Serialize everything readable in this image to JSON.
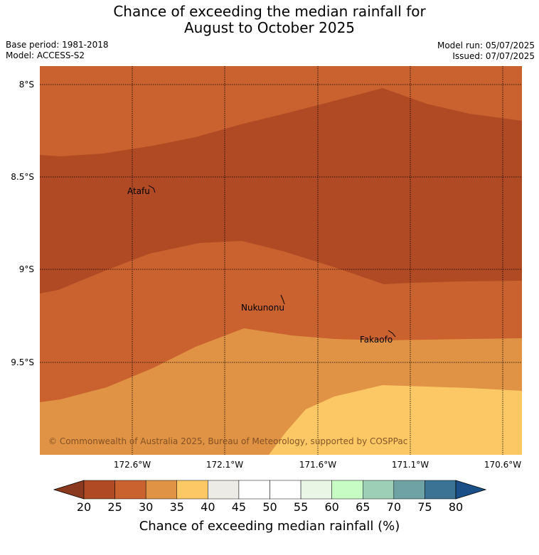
{
  "title_line1": "Chance of exceeding the median rainfall for",
  "title_line2": "August to October 2025",
  "meta": {
    "base_period": "Base period: 1981-2018",
    "model": "Model: ACCESS-S2",
    "model_run": "Model run: 05/07/2025",
    "issued": "Issued: 07/07/2025"
  },
  "axes": {
    "y_ticks": [
      "8°S",
      "8.5°S",
      "9°S",
      "9.5°S"
    ],
    "x_ticks": [
      "172.6°W",
      "172.1°W",
      "171.6°W",
      "171.1°W",
      "170.6°W"
    ]
  },
  "places": [
    "Atafu",
    "Nukunonu",
    "Fakaofo"
  ],
  "copyright": "© Commonwealth of Australia 2025, Bureau of Meteorology, supported by COSPPac",
  "colorbar": {
    "label": "Chance of exceeding median rainfall (%)",
    "ticks": [
      "20",
      "25",
      "30",
      "35",
      "40",
      "45",
      "50",
      "55",
      "60",
      "65",
      "70",
      "75",
      "80"
    ],
    "colors": [
      "#b04a24",
      "#c9622f",
      "#e09344",
      "#fcc865",
      "#ecebe6",
      "#ffffff",
      "#ffffff",
      "#e9f6e6",
      "#c7fcc5",
      "#9dcfb7",
      "#6ea2a5",
      "#3b7394"
    ],
    "under_color": "#8b3a1f",
    "over_color": "#1b4f87"
  },
  "map_colors": {
    "band_20_25": "#b04a24",
    "band_25_30": "#c9622f",
    "band_30_35": "#e09344",
    "band_35_40": "#fcc865"
  }
}
